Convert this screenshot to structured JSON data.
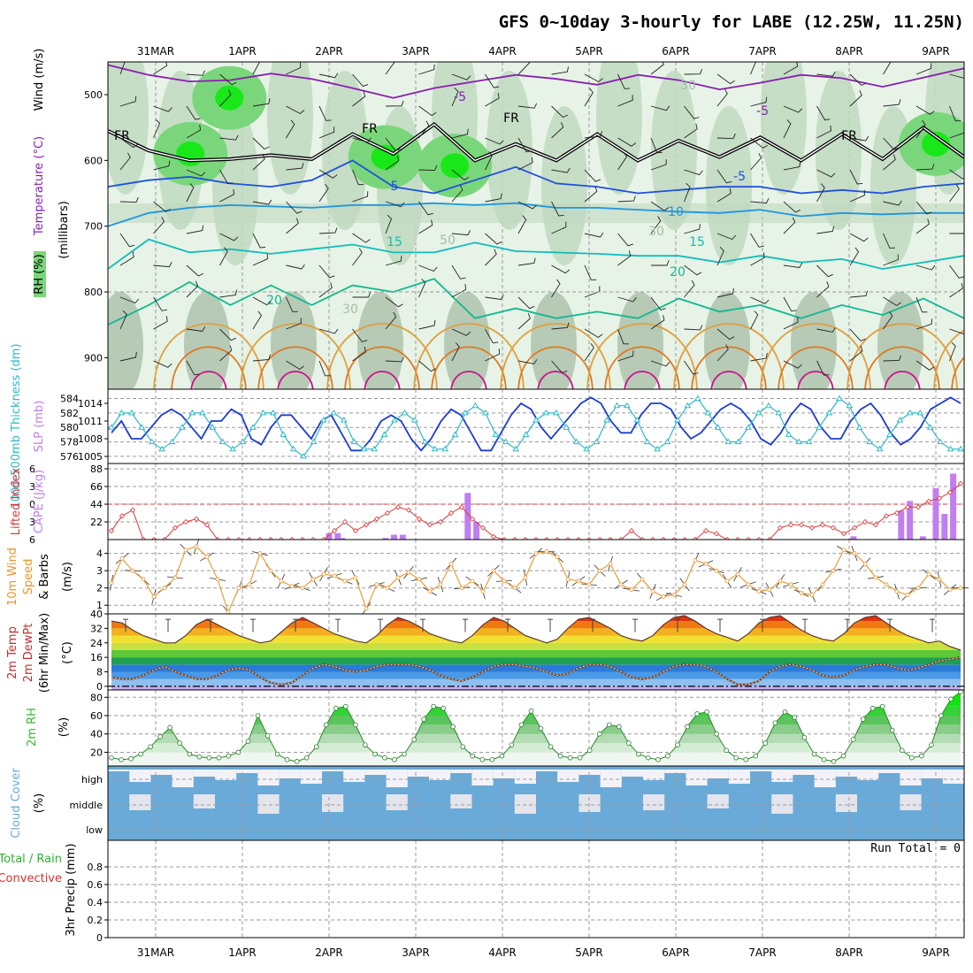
{
  "title": "GFS 0~10day 3-hourly for LABE (12.25W, 11.25N)",
  "dates": [
    "31MAR",
    "1APR",
    "2APR",
    "3APR",
    "4APR",
    "5APR",
    "6APR",
    "7APR",
    "8APR",
    "9APR"
  ],
  "colors": {
    "rh_light": "#e6f3e6",
    "rh_mid": "#bfd8bf",
    "rh_gray": "#a6bca6",
    "rh_green": "#7ad67a",
    "rh_bright": "#18e818",
    "temp_purple": "#8a1fb0",
    "temp_black": "#000000",
    "temp_blue": "#1e50dc",
    "temp_ltblue": "#1e96e0",
    "temp_teal": "#10bcbc",
    "temp_green": "#10b890",
    "temp_yellow": "#e0a040",
    "temp_orange": "#e07820",
    "temp_magenta": "#d0108a",
    "slp": "#1e3cd2",
    "thickness": "#30b8c8",
    "lifted": "#d83a3a",
    "cape": "#c07ef0",
    "wind": "#e8962a",
    "rh2m": "#38b838",
    "cloud_blue": "#6aaad8",
    "cloud_clear": "#f2f2f8",
    "precip_total": "#30b030",
    "precip_conv": "#e03030"
  },
  "chart_data": [
    {
      "type": "contour",
      "panel": "upper-air cross section",
      "ylabel": "(millibars)",
      "side_labels": [
        "Wind (m/s)",
        "Temperature (°C)",
        "RH (%)"
      ],
      "y_ticks": [
        500,
        600,
        700,
        800,
        900
      ],
      "ylim": [
        950,
        450
      ],
      "contour_labels": [
        "-5",
        "-5",
        "FR",
        "FR",
        "FR",
        "FR",
        "5",
        "-5",
        "10",
        "15",
        "15",
        "20",
        "20",
        "30",
        "30",
        "30",
        "50"
      ],
      "levels": [
        {
          "name": "-5",
          "p": [
            455,
            470,
            480,
            478,
            468,
            476,
            490,
            505,
            490,
            480,
            470,
            476,
            485,
            470,
            478,
            492,
            482,
            470,
            475,
            488,
            474,
            460
          ],
          "color": "temp_purple"
        },
        {
          "name": "FR",
          "p": [
            555,
            585,
            600,
            598,
            592,
            598,
            560,
            590,
            545,
            600,
            575,
            600,
            560,
            600,
            570,
            595,
            565,
            600,
            560,
            598,
            550,
            595
          ],
          "color": "temp_black"
        },
        {
          "name": "5",
          "p": [
            640,
            630,
            625,
            635,
            640,
            630,
            600,
            640,
            650,
            630,
            610,
            635,
            640,
            650,
            645,
            640,
            640,
            650,
            645,
            650,
            640,
            635
          ],
          "color": "temp_blue"
        },
        {
          "name": "10",
          "p": [
            700,
            680,
            672,
            668,
            670,
            672,
            668,
            668,
            665,
            668,
            665,
            672,
            672,
            675,
            678,
            680,
            675,
            685,
            680,
            682,
            680,
            680
          ],
          "color": "temp_ltblue"
        },
        {
          "name": "15",
          "p": [
            765,
            720,
            740,
            735,
            742,
            735,
            728,
            740,
            740,
            725,
            738,
            740,
            742,
            745,
            745,
            755,
            745,
            755,
            750,
            765,
            755,
            745
          ],
          "color": "temp_teal"
        },
        {
          "name": "20",
          "p": [
            850,
            820,
            785,
            820,
            790,
            820,
            790,
            800,
            780,
            840,
            825,
            840,
            830,
            840,
            810,
            830,
            820,
            840,
            820,
            835,
            810,
            840
          ],
          "color": "temp_green"
        }
      ],
      "rh_blobs": [
        {
          "x": 0.4,
          "p": 590,
          "level": "rh_bright"
        },
        {
          "x": 0.85,
          "p": 505,
          "level": "rh_bright"
        },
        {
          "x": 2.65,
          "p": 595,
          "level": "rh_bright"
        },
        {
          "x": 3.45,
          "p": 608,
          "level": "rh_bright"
        },
        {
          "x": 9.0,
          "p": 575,
          "level": "rh_bright"
        }
      ]
    },
    {
      "type": "line",
      "panel": "thickness-slp",
      "ylabel_left": "1000-500mb Thickness (dm)",
      "ylabel_right": "SLP (mb)",
      "left_ticks": [
        576,
        578,
        580,
        582,
        584
      ],
      "left_lim": [
        575.5,
        584.8
      ],
      "right_ticks": [
        1005,
        1008,
        1011,
        1014
      ],
      "right_lim": [
        1004.4,
        1015.8
      ],
      "series": [
        {
          "name": "SLP",
          "axis": "right",
          "values": [
            1009,
            1011,
            1008,
            1008,
            1010,
            1012,
            1013,
            1012,
            1010,
            1008,
            1011,
            1011,
            1013,
            1012,
            1008,
            1007,
            1010,
            1012,
            1012,
            1010,
            1008,
            1011,
            1012,
            1009,
            1006,
            1006,
            1008,
            1011,
            1012,
            1011,
            1008,
            1006,
            1008,
            1011,
            1013,
            1012,
            1009,
            1006,
            1006,
            1009,
            1012,
            1014,
            1013,
            1010,
            1008,
            1010,
            1012,
            1014,
            1015,
            1014,
            1011,
            1009,
            1009,
            1012,
            1014,
            1014,
            1013,
            1010,
            1008,
            1009,
            1011,
            1013,
            1014,
            1013,
            1011,
            1008,
            1007,
            1009,
            1012,
            1014,
            1013,
            1010,
            1008,
            1008,
            1011,
            1013,
            1014,
            1012,
            1009,
            1007,
            1008,
            1010,
            1013,
            1014,
            1015,
            1014
          ]
        },
        {
          "name": "Thickness",
          "axis": "left",
          "values": [
            580,
            582,
            582,
            580,
            578,
            577,
            578,
            580,
            582,
            582,
            580,
            578,
            577,
            578,
            580,
            582,
            582,
            579,
            577,
            576,
            578,
            581,
            582,
            581,
            578,
            577,
            577,
            579,
            581,
            582,
            581,
            578,
            577,
            577,
            579,
            582,
            583,
            582,
            579,
            578,
            577,
            579,
            581,
            582,
            582,
            580,
            578,
            577,
            578,
            581,
            583,
            583,
            581,
            578,
            577,
            578,
            581,
            583,
            584,
            582,
            580,
            578,
            578,
            580,
            582,
            583,
            582,
            579,
            578,
            578,
            580,
            582,
            584,
            583,
            580,
            578,
            577,
            579,
            581,
            582,
            582,
            580,
            578,
            577,
            577
          ]
        }
      ]
    },
    {
      "type": "bar",
      "panel": "cape-lifted-index",
      "ylabel_left": "Lifted Index",
      "ylabel_right": "CAPE (J/kg)",
      "li_ticks": [
        -6,
        -3,
        0,
        3,
        6
      ],
      "li_lim": [
        -6,
        6
      ],
      "cape_ticks": [
        22,
        44,
        66,
        88
      ],
      "cape_lim": [
        0,
        88
      ],
      "bars_x": [
        2.0,
        2.1,
        2.15,
        2.65,
        2.75,
        2.85,
        3.6,
        3.7,
        8.05,
        8.6,
        8.7,
        8.85,
        9.0,
        9.1,
        9.2
      ],
      "cape": [
        8,
        8,
        2,
        2,
        6,
        6,
        58,
        22,
        4,
        36,
        48,
        4,
        64,
        32,
        82
      ],
      "lifted_index": [
        4.5,
        2.0,
        1.0,
        6,
        6,
        6,
        4,
        3.0,
        2.5,
        3.5,
        6,
        6,
        6,
        6,
        6,
        6,
        6,
        6,
        6,
        6,
        6,
        4.5,
        3.0,
        4.5,
        3.5,
        2.5,
        1.5,
        0.5,
        1.0,
        2.5,
        3.5,
        3.0,
        1.5,
        0.5,
        2.5,
        4.0,
        5.5,
        6,
        6,
        6,
        6,
        6,
        6,
        6,
        6,
        6,
        6,
        6,
        6,
        4.5,
        6,
        6,
        6,
        6,
        6,
        6,
        4.5,
        5.0,
        6,
        6,
        6,
        6,
        6,
        4.0,
        3.5,
        3.5,
        4.0,
        3.5,
        4.0,
        5.0,
        4.0,
        3.0,
        3.5,
        2.0,
        1.5,
        0.5,
        0.5,
        -0.5,
        -1.0,
        -2.0,
        -3.5
      ]
    },
    {
      "type": "line",
      "panel": "10m-wind",
      "ylabel": "10m Wind Speed & Barbs (m/s)",
      "y_ticks": [
        1,
        2,
        3,
        4
      ],
      "ylim": [
        0.5,
        4.8
      ],
      "series": [
        {
          "name": "Speed",
          "values": [
            2.3,
            3.7,
            3.0,
            2.5,
            1.5,
            2.0,
            2.6,
            4.2,
            4.4,
            3.8,
            2.5,
            0.6,
            2.0,
            2.2,
            4.0,
            3.0,
            2.4,
            2.1,
            2.0,
            2.5,
            2.8,
            2.7,
            2.4,
            2.6,
            0.8,
            2.2,
            2.0,
            2.6,
            2.9,
            2.5,
            1.8,
            2.2,
            3.4,
            2.0,
            2.4,
            1.8,
            3.0,
            2.4,
            2.0,
            2.6,
            4.0,
            4.1,
            3.8,
            2.5,
            2.4,
            2.2,
            3.0,
            3.4,
            2.2,
            1.9,
            2.5,
            1.8,
            1.5,
            1.6,
            2.2,
            3.6,
            3.4,
            3.0,
            2.4,
            2.8,
            2.2,
            1.8,
            1.9,
            2.4,
            2.2,
            1.7,
            1.6,
            2.2,
            3.0,
            4.2,
            4.0,
            3.4,
            2.6,
            2.2,
            1.8,
            1.6,
            2.0,
            2.8,
            2.5,
            1.9,
            2.0
          ]
        }
      ]
    },
    {
      "type": "area",
      "panel": "2m-temp",
      "ylabel": "2m Temp 2m DewPt (6hr Min/Max) (°C)",
      "y_ticks": [
        0,
        8,
        16,
        24,
        32,
        40
      ],
      "ylim": [
        -2,
        40
      ],
      "series": [
        {
          "name": "Temp",
          "values": [
            36,
            35,
            31,
            28,
            26,
            24,
            24,
            28,
            34,
            37,
            34,
            31,
            28,
            26,
            24,
            25,
            30,
            35,
            38,
            35,
            32,
            29,
            27,
            25,
            24,
            28,
            34,
            38,
            36,
            33,
            29,
            27,
            25,
            24,
            28,
            34,
            38,
            36,
            32,
            28,
            26,
            24,
            26,
            32,
            37,
            38,
            35,
            32,
            28,
            26,
            25,
            28,
            34,
            38,
            39,
            36,
            32,
            29,
            27,
            25,
            29,
            35,
            38,
            39,
            35,
            31,
            28,
            26,
            25,
            29,
            35,
            38,
            39,
            35,
            31,
            28,
            26,
            24,
            25,
            22,
            20
          ]
        },
        {
          "name": "DewPt",
          "values": [
            5,
            4,
            4,
            6,
            9,
            11,
            8,
            6,
            4,
            4,
            6,
            9,
            10,
            9,
            5,
            2,
            1,
            2,
            6,
            10,
            12,
            11,
            9,
            8,
            9,
            11,
            12,
            12,
            12,
            11,
            9,
            6,
            4,
            3,
            5,
            8,
            11,
            12,
            12,
            11,
            10,
            8,
            6,
            7,
            10,
            12,
            12,
            11,
            8,
            5,
            4,
            5,
            8,
            11,
            12,
            12,
            11,
            8,
            4,
            1,
            1,
            3,
            8,
            11,
            12,
            11,
            9,
            6,
            5,
            6,
            9,
            11,
            12,
            12,
            10,
            9,
            10,
            12,
            14,
            15,
            16
          ]
        }
      ]
    },
    {
      "type": "area",
      "panel": "2m-rh",
      "ylabel": "2m RH (%)",
      "y_ticks": [
        20,
        40,
        60,
        80
      ],
      "ylim": [
        5,
        88
      ],
      "series": [
        {
          "name": "RH",
          "values": [
            14,
            12,
            13,
            18,
            26,
            37,
            47,
            30,
            18,
            15,
            14,
            14,
            16,
            20,
            32,
            60,
            38,
            18,
            12,
            10,
            14,
            26,
            50,
            68,
            70,
            50,
            28,
            18,
            14,
            12,
            18,
            34,
            56,
            70,
            68,
            48,
            26,
            16,
            12,
            12,
            16,
            28,
            50,
            65,
            46,
            26,
            16,
            14,
            14,
            22,
            40,
            50,
            48,
            30,
            18,
            14,
            12,
            16,
            28,
            48,
            62,
            64,
            40,
            22,
            14,
            12,
            16,
            30,
            52,
            64,
            58,
            36,
            18,
            12,
            10,
            16,
            34,
            56,
            68,
            70,
            44,
            22,
            14,
            16,
            28,
            60,
            78,
            86
          ]
        }
      ]
    },
    {
      "type": "heatmap",
      "panel": "cloud-cover",
      "ylabel": "Cloud Cover (%)",
      "row_labels": [
        "high",
        "middle",
        "low"
      ],
      "values_pattern": "high clear bands; middle patchy gaps"
    },
    {
      "type": "bar",
      "panel": "3hr-precip",
      "ylabel": "3hr Precip (mm)",
      "series_labels": [
        "Total / Rain",
        "Convective"
      ],
      "y_ticks": [
        0,
        0.2,
        0.4,
        0.6,
        0.8
      ],
      "ylim": [
        0,
        1
      ],
      "run_total": "Run Total = 0",
      "values": []
    }
  ]
}
